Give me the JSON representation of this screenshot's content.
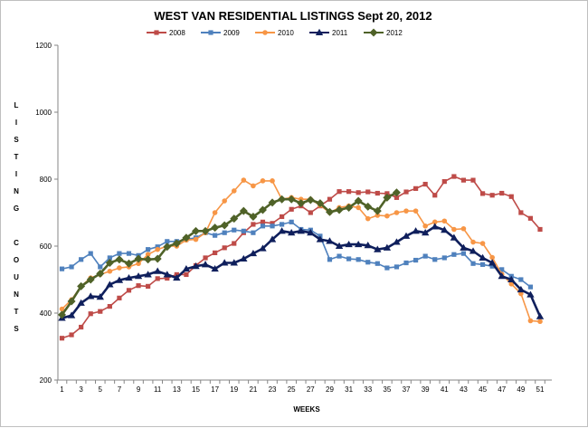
{
  "chart_data": {
    "type": "line",
    "title": "WEST VAN RESIDENTIAL LISTINGS  Sept 20, 2012",
    "xlabel": "WEEKS",
    "ylabel": "LISTING COUNTS",
    "ylim": [
      200,
      1200
    ],
    "yticks": [
      "200",
      "400",
      "600",
      "800",
      "1000",
      "1200"
    ],
    "xlim": [
      1,
      52
    ],
    "xticks": [
      "1",
      "3",
      "5",
      "7",
      "9",
      "11",
      "13",
      "15",
      "17",
      "19",
      "21",
      "23",
      "25",
      "27",
      "29",
      "31",
      "33",
      "35",
      "37",
      "39",
      "41",
      "43",
      "45",
      "47",
      "49",
      "51"
    ],
    "grid": false,
    "legend": "top",
    "series": [
      {
        "name": "2008",
        "color": "#be4b48",
        "marker": "square",
        "x": [
          1,
          2,
          3,
          4,
          5,
          6,
          7,
          8,
          9,
          10,
          11,
          12,
          13,
          14,
          15,
          16,
          17,
          18,
          19,
          20,
          21,
          22,
          23,
          24,
          25,
          26,
          27,
          28,
          29,
          30,
          31,
          32,
          33,
          34,
          35,
          36,
          37,
          38,
          39,
          40,
          41,
          42,
          43,
          44,
          45,
          46,
          47,
          48,
          49,
          50,
          51
        ],
        "values": [
          325,
          335,
          358,
          398,
          405,
          420,
          445,
          468,
          482,
          480,
          503,
          504,
          515,
          515,
          542,
          565,
          580,
          595,
          608,
          640,
          665,
          672,
          668,
          688,
          710,
          720,
          700,
          720,
          740,
          763,
          763,
          760,
          762,
          758,
          757,
          745,
          762,
          772,
          785,
          752,
          793,
          808,
          797,
          797,
          757,
          752,
          758,
          748,
          700,
          683,
          650
        ]
      },
      {
        "name": "2009",
        "color": "#4f81bd",
        "marker": "square",
        "x": [
          1,
          2,
          3,
          4,
          5,
          6,
          7,
          8,
          9,
          10,
          11,
          12,
          13,
          14,
          15,
          16,
          17,
          18,
          19,
          20,
          21,
          22,
          23,
          24,
          25,
          26,
          27,
          28,
          29,
          30,
          31,
          32,
          33,
          34,
          35,
          36,
          37,
          38,
          39,
          40,
          41,
          42,
          43,
          44,
          45,
          46,
          47,
          48,
          49,
          50
        ],
        "values": [
          532,
          538,
          560,
          578,
          538,
          565,
          578,
          578,
          572,
          590,
          598,
          614,
          614,
          620,
          625,
          640,
          632,
          640,
          648,
          645,
          640,
          660,
          660,
          665,
          672,
          650,
          648,
          630,
          560,
          570,
          562,
          560,
          552,
          548,
          535,
          538,
          550,
          558,
          570,
          560,
          565,
          575,
          578,
          548,
          545,
          540,
          530,
          510,
          500,
          478
        ]
      },
      {
        "name": "2010",
        "color": "#f79646",
        "marker": "circle",
        "x": [
          1,
          2,
          3,
          4,
          5,
          6,
          7,
          8,
          9,
          10,
          11,
          12,
          13,
          14,
          15,
          16,
          17,
          18,
          19,
          20,
          21,
          22,
          23,
          24,
          25,
          26,
          27,
          28,
          29,
          30,
          31,
          32,
          33,
          34,
          35,
          36,
          37,
          38,
          39,
          40,
          41,
          42,
          43,
          44,
          45,
          46,
          47,
          48,
          49,
          50,
          51
        ],
        "values": [
          412,
          440,
          480,
          505,
          515,
          525,
          535,
          538,
          548,
          575,
          590,
          600,
          600,
          618,
          620,
          640,
          700,
          735,
          765,
          797,
          780,
          795,
          795,
          740,
          745,
          740,
          740,
          722,
          700,
          715,
          720,
          715,
          682,
          692,
          690,
          700,
          705,
          705,
          660,
          672,
          675,
          650,
          652,
          612,
          608,
          566,
          516,
          487,
          458,
          377,
          375
        ]
      },
      {
        "name": "2011",
        "color": "#0f1f5c",
        "marker": "triangle",
        "x": [
          1,
          2,
          3,
          4,
          5,
          6,
          7,
          8,
          9,
          10,
          11,
          12,
          13,
          14,
          15,
          16,
          17,
          18,
          19,
          20,
          21,
          22,
          23,
          24,
          25,
          26,
          27,
          28,
          29,
          30,
          31,
          32,
          33,
          34,
          35,
          36,
          37,
          38,
          39,
          40,
          41,
          42,
          43,
          44,
          45,
          46,
          47,
          48,
          49,
          50,
          51
        ],
        "values": [
          385,
          393,
          430,
          450,
          448,
          485,
          498,
          505,
          510,
          515,
          525,
          515,
          505,
          532,
          540,
          545,
          532,
          550,
          550,
          562,
          578,
          593,
          620,
          645,
          640,
          645,
          640,
          620,
          615,
          600,
          605,
          605,
          602,
          590,
          595,
          612,
          630,
          645,
          640,
          658,
          648,
          625,
          595,
          585,
          565,
          550,
          510,
          500,
          470,
          455,
          390
        ]
      },
      {
        "name": "2012",
        "color": "#4f6228",
        "marker": "diamond",
        "x": [
          1,
          2,
          3,
          4,
          5,
          6,
          7,
          8,
          9,
          10,
          11,
          12,
          13,
          14,
          15,
          16,
          17,
          18,
          19,
          20,
          21,
          22,
          23,
          24,
          25,
          26,
          27,
          28,
          29,
          30,
          31,
          32,
          33,
          34,
          35,
          36
        ],
        "values": [
          395,
          435,
          480,
          500,
          518,
          550,
          560,
          548,
          562,
          560,
          562,
          598,
          608,
          625,
          645,
          645,
          655,
          662,
          682,
          705,
          688,
          708,
          730,
          740,
          740,
          728,
          738,
          728,
          702,
          708,
          715,
          735,
          718,
          705,
          745,
          760
        ]
      }
    ]
  }
}
